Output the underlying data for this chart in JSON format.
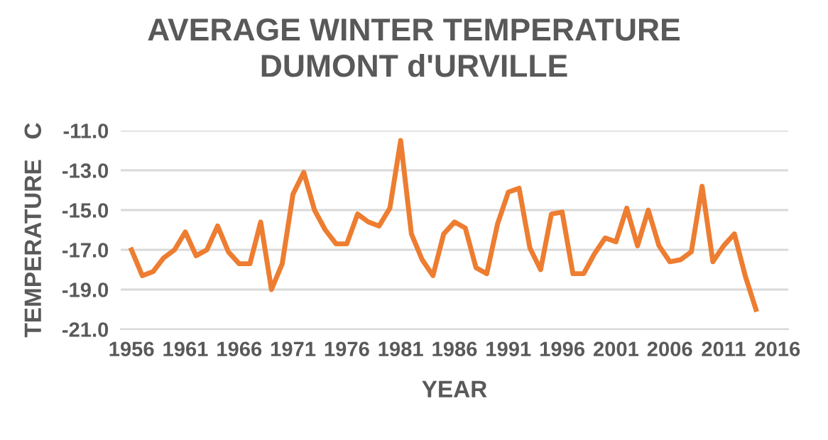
{
  "chart_data": {
    "type": "line",
    "title": "AVERAGE WINTER TEMPERATURE\nDUMONT d'URVILLE",
    "xlabel": "YEAR",
    "ylabel": "TEMPERATURE   C",
    "x": [
      1956,
      1957,
      1958,
      1959,
      1960,
      1961,
      1962,
      1963,
      1964,
      1965,
      1966,
      1967,
      1968,
      1969,
      1970,
      1971,
      1972,
      1973,
      1974,
      1975,
      1976,
      1977,
      1978,
      1979,
      1980,
      1981,
      1982,
      1983,
      1984,
      1985,
      1986,
      1987,
      1988,
      1989,
      1990,
      1991,
      1992,
      1993,
      1994,
      1995,
      1996,
      1997,
      1998,
      1999,
      2000,
      2001,
      2002,
      2003,
      2004,
      2005,
      2006,
      2007,
      2008,
      2009,
      2010,
      2011,
      2012,
      2013,
      2014
    ],
    "series": [
      {
        "color": "#ed7d31",
        "values": [
          -17.0,
          -18.3,
          -18.1,
          -17.4,
          -17.0,
          -16.1,
          -17.3,
          -17.0,
          -15.8,
          -17.1,
          -17.7,
          -17.7,
          -15.6,
          -19.0,
          -17.7,
          -14.2,
          -13.1,
          -15.0,
          -16.0,
          -16.7,
          -16.7,
          -15.2,
          -15.6,
          -15.8,
          -14.9,
          -11.5,
          -16.2,
          -17.5,
          -18.3,
          -16.2,
          -15.6,
          -15.9,
          -17.9,
          -18.2,
          -15.7,
          -14.1,
          -13.9,
          -16.9,
          -18.0,
          -15.2,
          -15.1,
          -18.2,
          -18.2,
          -17.2,
          -16.4,
          -16.6,
          -14.9,
          -16.8,
          -15.0,
          -16.8,
          -17.6,
          -17.5,
          -17.1,
          -13.8,
          -17.6,
          -16.8,
          -16.2,
          -18.3,
          -20.0
        ]
      }
    ],
    "xlim": [
      1955,
      2017
    ],
    "xticks": [
      1956,
      1961,
      1966,
      1971,
      1976,
      1981,
      1986,
      1991,
      1996,
      2001,
      2006,
      2011,
      2016
    ],
    "ylim": [
      -21.0,
      -11.0
    ],
    "yticks": [
      {
        "value": -21,
        "label": "-21.0"
      },
      {
        "value": -19,
        "label": "-19.0"
      },
      {
        "value": -17,
        "label": "-17.0"
      },
      {
        "value": -15,
        "label": "-15.0"
      },
      {
        "value": -13,
        "label": "-13.0"
      },
      {
        "value": -11,
        "label": "-11.0"
      }
    ],
    "grid": "y",
    "marker": "none",
    "line_style": "solid"
  }
}
